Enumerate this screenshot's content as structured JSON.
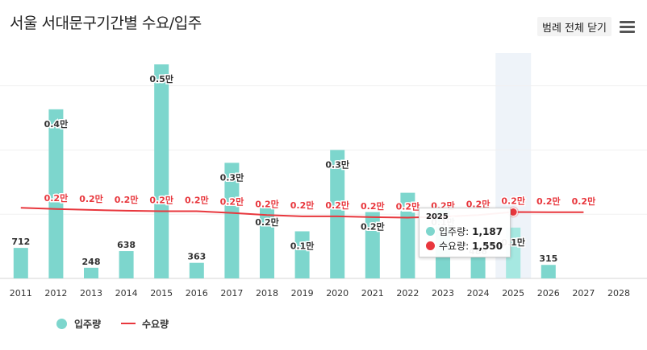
{
  "header": {
    "title": "서울 서대문구기간별 수요/입주",
    "legend_toggle_label": "범례 전체 닫기",
    "menu_icon": "hamburger-menu-icon"
  },
  "colors": {
    "supply": "#7dd6cd",
    "supply_highlight": "#a6e8e1",
    "demand": "#e8373d",
    "highlight_band": "#eef3f9"
  },
  "chart_data": {
    "type": "bar",
    "categories": [
      "2011",
      "2012",
      "2013",
      "2014",
      "2015",
      "2016",
      "2017",
      "2018",
      "2019",
      "2020",
      "2021",
      "2022",
      "2023",
      "2024",
      "2025",
      "2026",
      "2027",
      "2028"
    ],
    "series": [
      {
        "name": "입주량",
        "type": "bar",
        "values": [
          712,
          3950,
          248,
          638,
          5000,
          363,
          2700,
          1650,
          1100,
          3000,
          1550,
          2000,
          1650,
          488,
          1187,
          315,
          0,
          0
        ],
        "labels": [
          "712",
          "0.4만",
          "248",
          "638",
          "0.5만",
          "363",
          "0.3만",
          "0.2만",
          "0.1만",
          "0.3만",
          "0.2만",
          "0.2만",
          "0.1만",
          "488",
          "0.1만",
          "315",
          "",
          ""
        ]
      },
      {
        "name": "수요량",
        "type": "line",
        "values": [
          1650,
          1620,
          1600,
          1580,
          1570,
          1570,
          1530,
          1480,
          1450,
          1450,
          1430,
          1420,
          1440,
          1480,
          1550,
          1545,
          1545,
          null
        ],
        "labels": [
          "",
          "0.2만",
          "0.2만",
          "0.2만",
          "0.2만",
          "0.2만",
          "0.2만",
          "0.2만",
          "0.2만",
          "0.2만",
          "0.2만",
          "0.2만",
          "0.2만",
          "0.2만",
          "0.2만",
          "0.2만",
          "0.2만",
          ""
        ]
      }
    ],
    "ylim": [
      0,
      5000
    ],
    "grid": true,
    "highlight_category": "2025",
    "legend_position": "bottom-left",
    "tooltip": {
      "year": "2025",
      "supply_label": "입주량:",
      "supply_value": "1,187",
      "demand_label": "수요량:",
      "demand_value": "1,550"
    }
  },
  "legend": [
    {
      "label": "입주량"
    },
    {
      "label": "수요량"
    }
  ]
}
